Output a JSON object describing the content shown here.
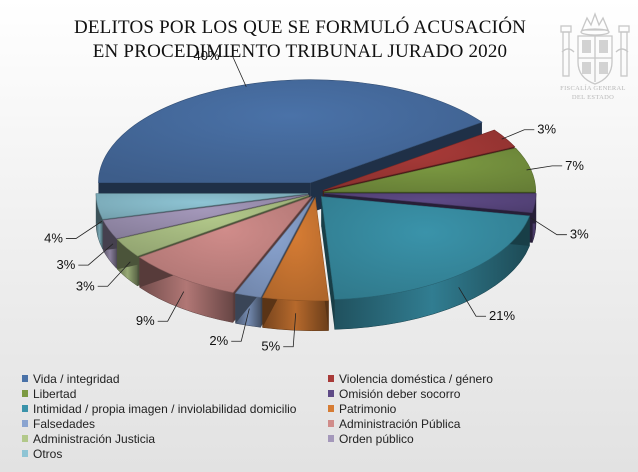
{
  "header": {
    "title_line1": "DELITOS POR LOS QUE SE FORMULÓ ACUSACIÓN",
    "title_line2": "EN PROCEDIMIENTO TRIBUNAL JURADO 2020",
    "emblem_line1": "FISCALÍA GENERAL",
    "emblem_line2": "DEL ESTADO"
  },
  "chart_data": {
    "type": "pie",
    "title": "DELITOS POR LOS QUE SE FORMULÓ ACUSACIÓN EN PROCEDIMIENTO TRIBUNAL JURADO 2020",
    "legend_position": "bottom",
    "exploded": true,
    "three_d": true,
    "slices": [
      {
        "name": "Vida / integridad",
        "value": 40,
        "label": "40%",
        "color": "#4a72a8"
      },
      {
        "name": "Violencia doméstica / género",
        "value": 3,
        "label": "3%",
        "color": "#a83a38"
      },
      {
        "name": "Libertad",
        "value": 7,
        "label": "7%",
        "color": "#7c9a42"
      },
      {
        "name": "Omisión deber socorro",
        "value": 3,
        "label": "3%",
        "color": "#5e4a86"
      },
      {
        "name": "Intimidad / propia imagen / inviolabilidad domicilio",
        "value": 21,
        "label": "21%",
        "color": "#3a93aa"
      },
      {
        "name": "Patrimonio",
        "value": 5,
        "label": "5%",
        "color": "#d67c34"
      },
      {
        "name": "Falsedades",
        "value": 2,
        "label": "2%",
        "color": "#8aa4d0"
      },
      {
        "name": "Administración Pública",
        "value": 9,
        "label": "9%",
        "color": "#d08c8a"
      },
      {
        "name": "Administración Justicia",
        "value": 3,
        "label": "3%",
        "color": "#b2c88a"
      },
      {
        "name": "Orden público",
        "value": 3,
        "label": "3%",
        "color": "#a498ba"
      },
      {
        "name": "Otros",
        "value": 4,
        "label": "4%",
        "color": "#8ec4d4"
      }
    ]
  }
}
